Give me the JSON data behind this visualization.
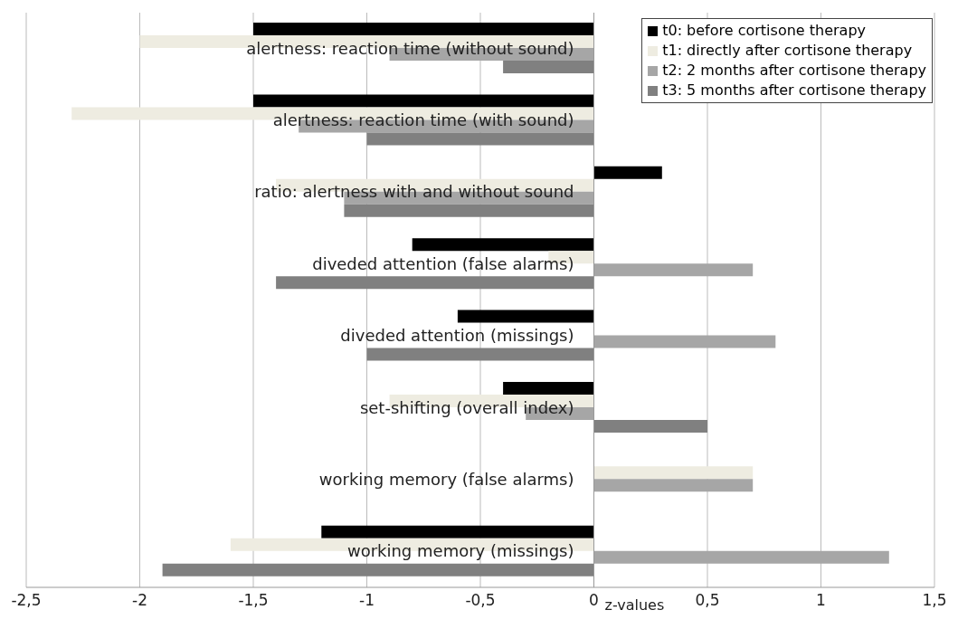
{
  "chart_data": {
    "type": "bar",
    "orientation": "horizontal",
    "xlabel": "z-values",
    "categories": [
      "alertness: reaction time (without sound)",
      "alertness: reaction time (with sound)",
      "ratio: alertness with and without sound",
      "diveded attention (false alarms)",
      "diveded attention (missings)",
      "set-shifting (overall index)",
      "working memory (false alarms)",
      "working memory (missings)"
    ],
    "series": [
      {
        "name": "t0: before cortisone therapy",
        "color": "#000000",
        "values": [
          -1.5,
          -1.5,
          0.3,
          -0.8,
          -0.6,
          -0.4,
          0,
          -1.2
        ]
      },
      {
        "name": "t1: directly after cortisone therapy",
        "color": "#eeece1",
        "values": [
          -2.0,
          -2.3,
          -1.4,
          -0.2,
          0,
          -0.9,
          0.7,
          -1.6
        ]
      },
      {
        "name": "t2: 2 months after cortisone therapy",
        "color": "#a6a6a6",
        "values": [
          -0.9,
          -1.3,
          -1.1,
          0.7,
          0.8,
          -0.3,
          0.7,
          1.3
        ]
      },
      {
        "name": "t3: 5 months after cortisone therapy",
        "color": "#808080",
        "values": [
          -0.4,
          -1.0,
          -1.1,
          -1.4,
          -1.0,
          0.5,
          0,
          -1.9
        ]
      }
    ],
    "xlim": [
      -2.5,
      1.5
    ],
    "xticks": [
      {
        "value": -2.5,
        "label": "-2,5"
      },
      -2,
      {
        "value": -1.5,
        "label": "-1,5"
      },
      -1,
      {
        "value": -0.5,
        "label": "-0,5"
      },
      0,
      {
        "value": 0.5,
        "label": "0,5"
      },
      1,
      {
        "value": 1.5,
        "label": "1,5"
      }
    ],
    "grid": "x",
    "legend": "top right"
  }
}
